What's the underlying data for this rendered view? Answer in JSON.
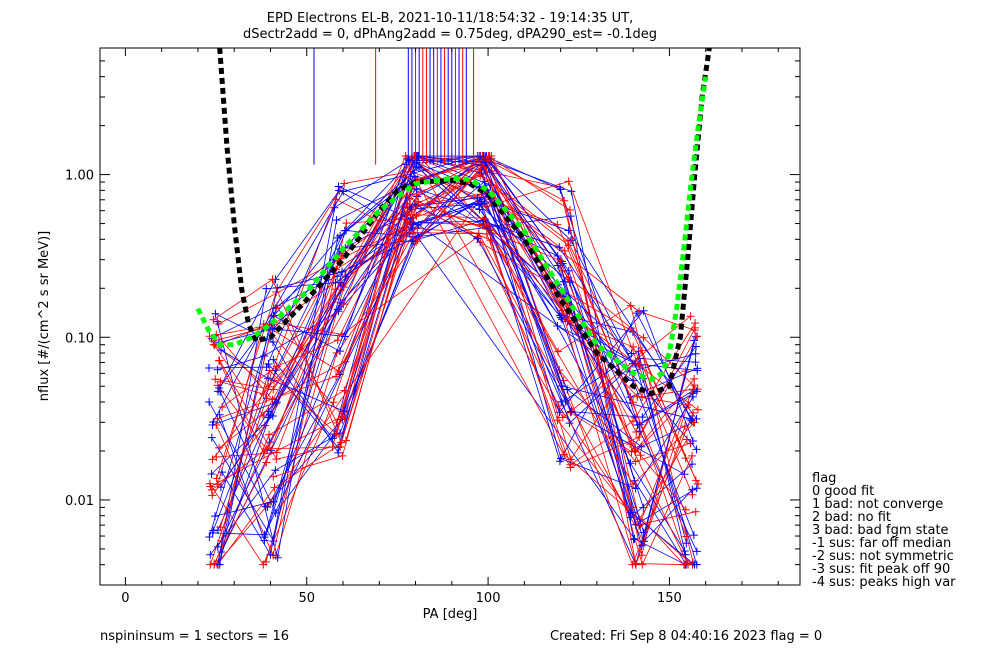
{
  "chart_data": {
    "type": "line",
    "title": "EPD Electrons EL-B, 2021-10-11/18:54:32 - 19:14:35 UT,",
    "subtitle": "dSectr2add = 0, dPhAng2add = 0.75deg, dPA290_est=  -0.1deg",
    "xlabel": "PA [deg]",
    "ylabel": "nflux [#/(cm^2 s sr MeV)]",
    "xlim": [
      -7,
      186
    ],
    "ylim": [
      0.003,
      6.0
    ],
    "yscale": "log",
    "x_ticks": [
      0,
      50,
      100,
      150
    ],
    "x_tick_labels": [
      "0",
      "50",
      "100",
      "150"
    ],
    "y_ticks": [
      0.01,
      0.1,
      1.0
    ],
    "y_tick_labels": [
      "0.01",
      "0.10",
      "1.00"
    ],
    "grid": false,
    "series_colors": {
      "blue": "#0000ff",
      "red": "#ff0000",
      "black_fit": "#000000",
      "green_fit": "#00ff00"
    },
    "vertical_markers": {
      "blue": [
        52,
        78,
        79,
        81,
        84,
        85,
        87,
        89,
        90,
        92,
        94
      ],
      "red": [
        69,
        80,
        82,
        83,
        86,
        88,
        91,
        93,
        96
      ]
    },
    "fit_curves": [
      {
        "color": "black_fit",
        "style": "dashed",
        "x": [
          26,
          28,
          30,
          32,
          34,
          36,
          40,
          50,
          60,
          70,
          75,
          80,
          90,
          95,
          100,
          110,
          120,
          130,
          140,
          145,
          150,
          153,
          155,
          157,
          159,
          161
        ],
        "y": [
          6.0,
          1.5,
          0.5,
          0.2,
          0.12,
          0.095,
          0.1,
          0.17,
          0.3,
          0.6,
          0.8,
          0.9,
          0.92,
          0.88,
          0.75,
          0.4,
          0.17,
          0.08,
          0.05,
          0.045,
          0.05,
          0.1,
          0.3,
          1.0,
          3.0,
          6.0
        ]
      },
      {
        "color": "green_fit",
        "style": "dashed",
        "x": [
          20,
          23,
          26,
          30,
          35,
          40,
          50,
          60,
          70,
          80,
          90,
          95,
          100,
          110,
          120,
          130,
          140,
          145,
          148,
          150,
          152,
          154,
          156,
          158,
          160
        ],
        "y": [
          0.15,
          0.11,
          0.09,
          0.09,
          0.1,
          0.12,
          0.19,
          0.35,
          0.6,
          0.88,
          0.95,
          0.93,
          0.8,
          0.45,
          0.2,
          0.09,
          0.06,
          0.055,
          0.06,
          0.08,
          0.15,
          0.35,
          0.9,
          2.0,
          4.0
        ]
      }
    ],
    "legend": {
      "placement": "right",
      "title": "flag",
      "entries": [
        " 0 good fit",
        " 1 bad: not converge",
        " 2 bad: no fit",
        " 3 bad: bad fgm state",
        "-1 sus: far off median",
        "-2 sus: not symmetric",
        "-3 sus: fit peak off 90",
        "-4 sus: peaks high var"
      ]
    },
    "footer_left": "nspininsum =  1  sectors = 16",
    "footer_right": "Created: Fri Sep  8 04:40:16 2023   flag = 0"
  }
}
